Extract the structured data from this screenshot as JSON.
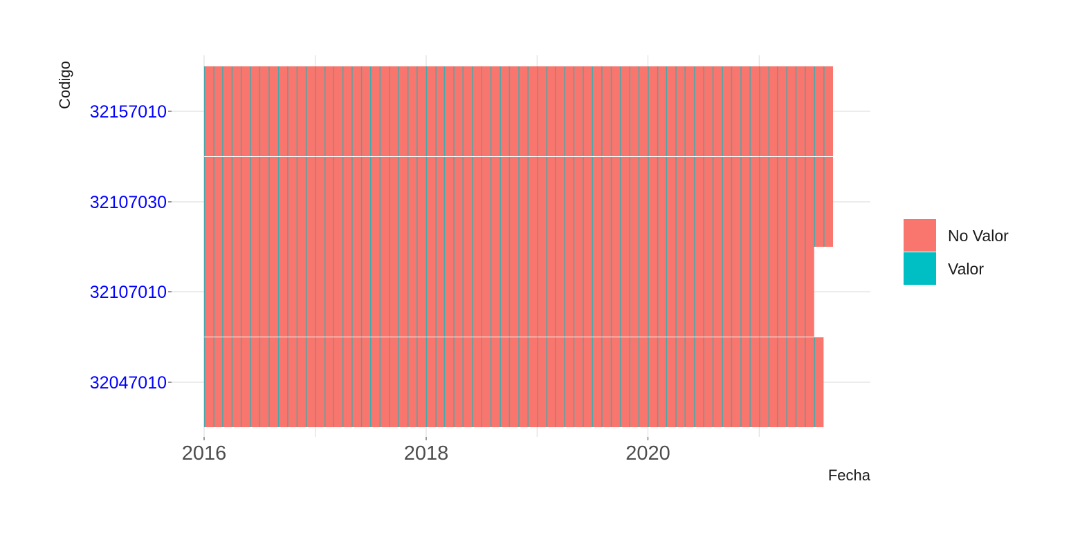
{
  "chart_data": {
    "type": "heatmap",
    "xlabel": "Fecha",
    "ylabel": "Codigo",
    "x_ticks": [
      "2016",
      "2018",
      "2020"
    ],
    "x_range": [
      "2016-01-01",
      "2021-09-01"
    ],
    "y_categories": [
      "32047010",
      "32107010",
      "32107030",
      "32157010"
    ],
    "legend": [
      {
        "label": "No Valor",
        "color": "#F8766D"
      },
      {
        "label": "Valor",
        "color": "#00BFC4"
      }
    ],
    "grid": true,
    "legend_placement": "right",
    "tick_label_color_y": "#0000ff",
    "rows": [
      {
        "codigo": "32047010",
        "start": "2016-01-01",
        "end": "2021-08-01",
        "status": "No Valor"
      },
      {
        "codigo": "32107010",
        "start": "2016-01-01",
        "end": "2021-07-01",
        "status": "No Valor"
      },
      {
        "codigo": "32107030",
        "start": "2016-01-01",
        "end": "2021-09-01",
        "status": "No Valor"
      },
      {
        "codigo": "32157010",
        "start": "2016-01-01",
        "end": "2021-09-01",
        "status": "No Valor"
      }
    ]
  }
}
